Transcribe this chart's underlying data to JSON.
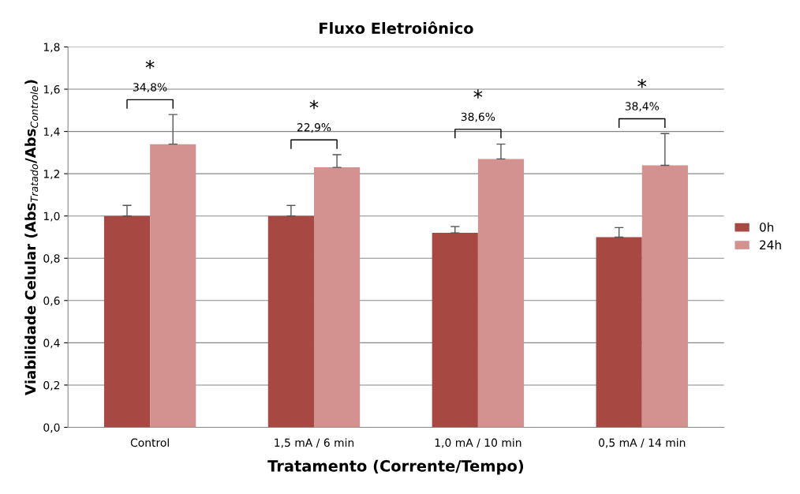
{
  "chart_data": {
    "type": "bar",
    "title": "Fluxo Eletroiônico",
    "xlabel": "Tratamento (Corrente/Tempo)",
    "ylabel": "Viabilidade Celular (Abs$_{Tratado}$/Abs$_{Controle}$)",
    "categories": [
      "Control",
      "1,5 mA / 6 min",
      "1,0 mA / 10 min",
      "0,5 mA / 14 min"
    ],
    "series": [
      {
        "name": "0h",
        "color": "#a84843",
        "values": [
          1.0,
          1.0,
          0.92,
          0.9
        ],
        "errors": [
          0.05,
          0.05,
          0.03,
          0.045
        ]
      },
      {
        "name": "24h",
        "color": "#d39190",
        "values": [
          1.34,
          1.23,
          1.27,
          1.24
        ],
        "errors": [
          0.14,
          0.06,
          0.07,
          0.15
        ]
      }
    ],
    "annotations": [
      "*",
      "34,8%",
      "*",
      "22,9%",
      "*",
      "38,6%",
      "*",
      "38,4%"
    ],
    "ylim": [
      0,
      1.8
    ],
    "yticks": [
      {
        "value": 0,
        "label": "0,0"
      },
      {
        "value": 0.2,
        "label": "0,2"
      },
      {
        "value": 0.4,
        "label": "0,4"
      },
      {
        "value": 0.6,
        "label": "0,6"
      },
      {
        "value": 0.8,
        "label": "0,8"
      },
      {
        "value": 1.0,
        "label": "1,0"
      },
      {
        "value": 1.2,
        "label": "1,2"
      },
      {
        "value": 1.4,
        "label": "1,4"
      },
      {
        "value": 1.6,
        "label": "1,6"
      },
      {
        "value": 1.8,
        "label": "1,8"
      }
    ],
    "grid": "y",
    "legend": "right"
  }
}
